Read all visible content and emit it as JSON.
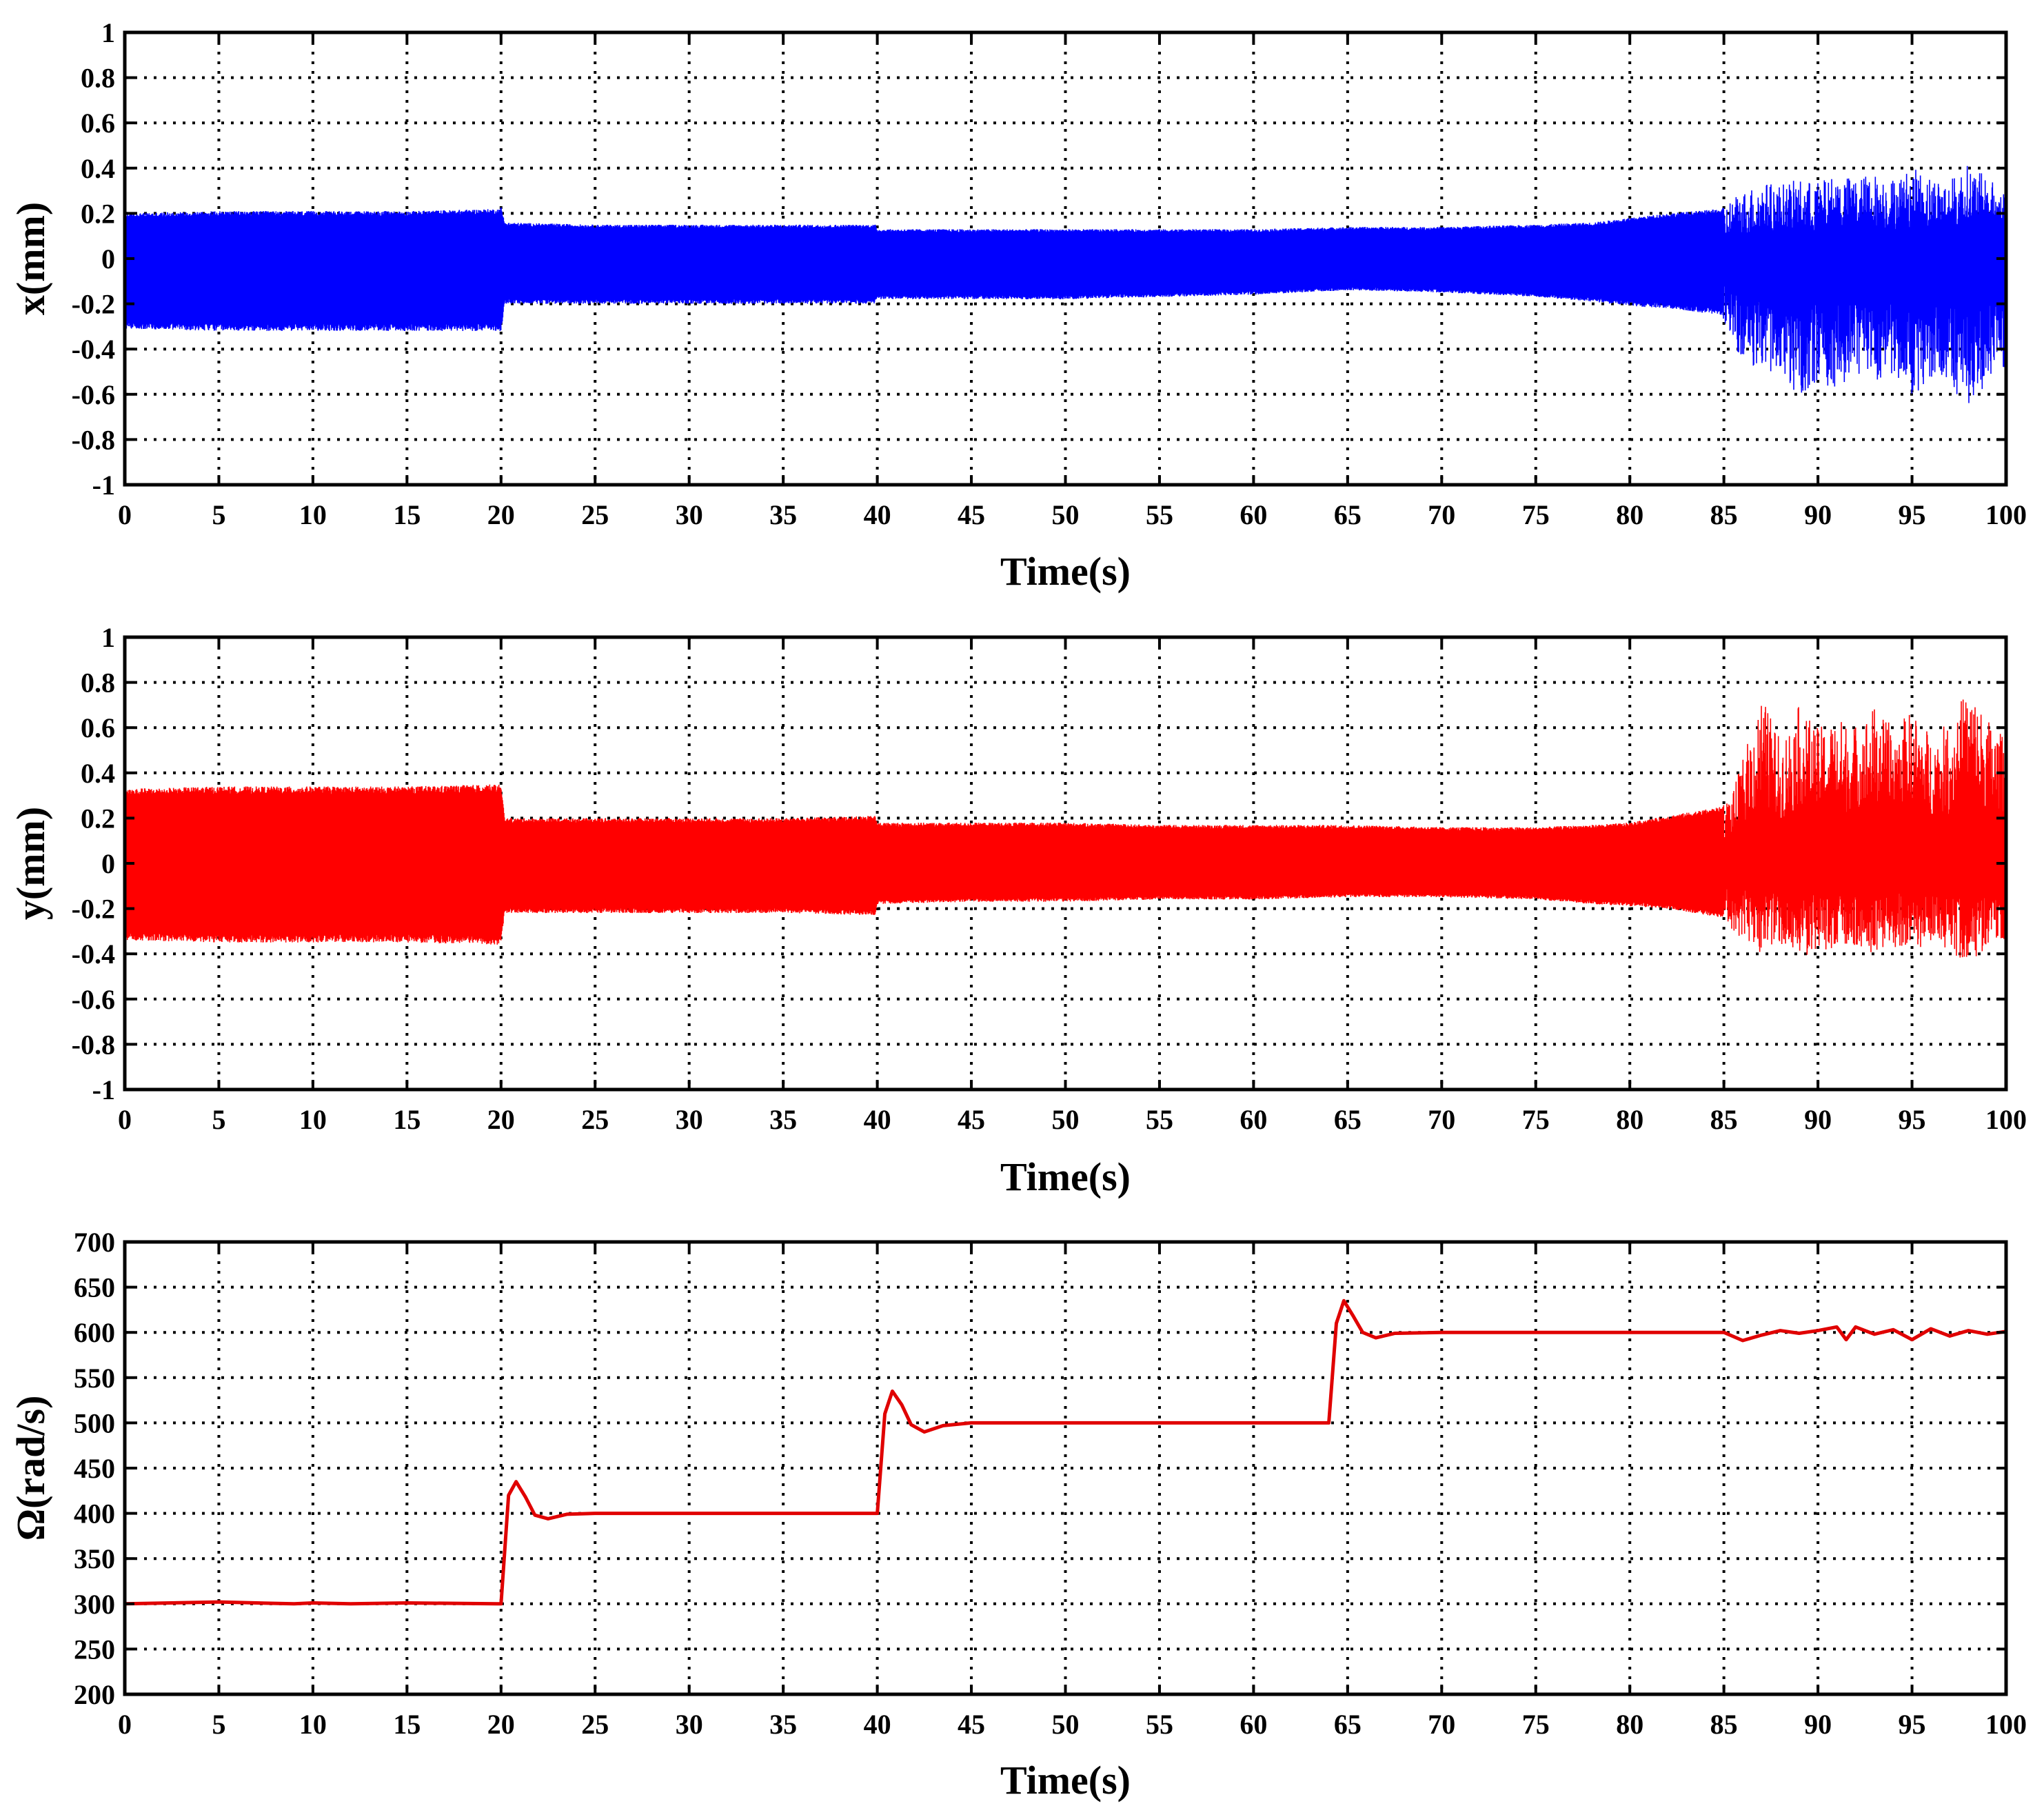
{
  "colors": {
    "x_series": "#0000ff",
    "y_series": "#ff0000",
    "omega_series": "#e00000"
  },
  "chart_data": [
    {
      "type": "line",
      "title": "",
      "xlabel": "Time(s)",
      "ylabel": "x(mm)",
      "xlim": [
        0,
        100
      ],
      "ylim": [
        -1,
        1
      ],
      "xticks": [
        0,
        5,
        10,
        15,
        20,
        25,
        30,
        35,
        40,
        45,
        50,
        55,
        60,
        65,
        70,
        75,
        80,
        85,
        90,
        95,
        100
      ],
      "yticks": [
        -1,
        -0.8,
        -0.6,
        -0.4,
        -0.2,
        0,
        0.2,
        0.4,
        0.6,
        0.8,
        1
      ],
      "ytick_labels": [
        "-1",
        "-0.8",
        "-0.6",
        "-0.4",
        "-0.2",
        "0",
        "0.2",
        "0.4",
        "0.6",
        "0.8",
        "1"
      ],
      "grid": true,
      "series": [
        {
          "color": "#0000ff",
          "style": "dense oscillation envelope",
          "x": [
            0,
            5,
            10,
            15,
            19.9,
            20,
            20.2,
            25,
            30,
            35,
            39.9,
            40,
            45,
            50,
            55,
            60,
            65,
            70,
            75,
            78,
            80,
            82,
            84.9,
            85.5,
            87,
            88,
            89,
            90,
            91,
            92,
            93,
            94,
            95,
            96,
            97,
            98,
            99,
            100
          ],
          "upper": [
            0.2,
            0.21,
            0.21,
            0.21,
            0.22,
            0.23,
            0.16,
            0.15,
            0.15,
            0.15,
            0.15,
            0.13,
            0.13,
            0.13,
            0.13,
            0.13,
            0.14,
            0.14,
            0.15,
            0.16,
            0.18,
            0.2,
            0.22,
            0.28,
            0.34,
            0.33,
            0.35,
            0.34,
            0.37,
            0.36,
            0.38,
            0.36,
            0.4,
            0.37,
            0.35,
            0.42,
            0.36,
            0.3
          ],
          "lower": [
            -0.31,
            -0.32,
            -0.32,
            -0.32,
            -0.32,
            -0.32,
            -0.2,
            -0.2,
            -0.2,
            -0.2,
            -0.2,
            -0.18,
            -0.18,
            -0.18,
            -0.17,
            -0.16,
            -0.14,
            -0.15,
            -0.17,
            -0.19,
            -0.21,
            -0.22,
            -0.25,
            -0.4,
            -0.55,
            -0.5,
            -0.62,
            -0.55,
            -0.6,
            -0.5,
            -0.58,
            -0.52,
            -0.62,
            -0.55,
            -0.6,
            -0.66,
            -0.55,
            -0.5
          ]
        }
      ]
    },
    {
      "type": "line",
      "title": "",
      "xlabel": "Time(s)",
      "ylabel": "y(mm)",
      "xlim": [
        0,
        100
      ],
      "ylim": [
        -1,
        1
      ],
      "xticks": [
        0,
        5,
        10,
        15,
        20,
        25,
        30,
        35,
        40,
        45,
        50,
        55,
        60,
        65,
        70,
        75,
        80,
        85,
        90,
        95,
        100
      ],
      "yticks": [
        -1,
        -0.8,
        -0.6,
        -0.4,
        -0.2,
        0,
        0.2,
        0.4,
        0.6,
        0.8,
        1
      ],
      "ytick_labels": [
        "-1",
        "-0.8",
        "-0.6",
        "-0.4",
        "-0.2",
        "0",
        "0.2",
        "0.4",
        "0.6",
        "0.8",
        "1"
      ],
      "grid": true,
      "series": [
        {
          "color": "#ff0000",
          "style": "dense oscillation envelope",
          "x": [
            0,
            5,
            10,
            15,
            19.9,
            20,
            20.2,
            25,
            30,
            35,
            39.9,
            40,
            45,
            50,
            55,
            60,
            65,
            70,
            75,
            78,
            80,
            82,
            84.9,
            85.5,
            87,
            88,
            89,
            90,
            91,
            92,
            93,
            94,
            95,
            96,
            97,
            98,
            99,
            100
          ],
          "upper": [
            0.33,
            0.34,
            0.34,
            0.34,
            0.35,
            0.34,
            0.2,
            0.2,
            0.2,
            0.2,
            0.21,
            0.18,
            0.18,
            0.18,
            0.17,
            0.17,
            0.17,
            0.16,
            0.16,
            0.17,
            0.18,
            0.21,
            0.25,
            0.32,
            0.75,
            0.55,
            0.7,
            0.6,
            0.65,
            0.62,
            0.7,
            0.6,
            0.68,
            0.58,
            0.62,
            0.8,
            0.65,
            0.55
          ],
          "lower": [
            -0.34,
            -0.35,
            -0.35,
            -0.35,
            -0.36,
            -0.34,
            -0.22,
            -0.22,
            -0.22,
            -0.22,
            -0.23,
            -0.18,
            -0.17,
            -0.17,
            -0.16,
            -0.16,
            -0.15,
            -0.15,
            -0.16,
            -0.18,
            -0.19,
            -0.2,
            -0.24,
            -0.3,
            -0.4,
            -0.36,
            -0.43,
            -0.38,
            -0.4,
            -0.36,
            -0.4,
            -0.37,
            -0.4,
            -0.35,
            -0.4,
            -0.44,
            -0.38,
            -0.35
          ]
        }
      ]
    },
    {
      "type": "line",
      "title": "",
      "xlabel": "Time(s)",
      "ylabel": "Ω(rad/s)",
      "xlim": [
        0,
        100
      ],
      "ylim": [
        200,
        700
      ],
      "xticks": [
        0,
        5,
        10,
        15,
        20,
        25,
        30,
        35,
        40,
        45,
        50,
        55,
        60,
        65,
        70,
        75,
        80,
        85,
        90,
        95,
        100
      ],
      "yticks": [
        200,
        250,
        300,
        350,
        400,
        450,
        500,
        550,
        600,
        650,
        700
      ],
      "ytick_labels": [
        "200",
        "250",
        "300",
        "350",
        "400",
        "450",
        "500",
        "550",
        "600",
        "650",
        "700"
      ],
      "grid": true,
      "series": [
        {
          "color": "#e00000",
          "style": "line",
          "x": [
            0,
            5,
            9,
            10,
            12,
            15,
            19.8,
            20.0,
            20.4,
            20.8,
            21.3,
            21.8,
            22.5,
            23.5,
            25,
            30,
            35,
            39.8,
            40.0,
            40.4,
            40.8,
            41.3,
            41.8,
            42.5,
            43.5,
            45,
            50,
            55,
            60,
            63.8,
            64.0,
            64.4,
            64.8,
            65.3,
            65.8,
            66.5,
            67.5,
            70,
            75,
            80,
            85,
            86,
            87,
            88,
            89,
            90,
            91,
            91.5,
            92,
            93,
            94,
            95,
            96,
            97,
            98,
            99,
            100
          ],
          "values": [
            300,
            302,
            300,
            301,
            300,
            301,
            300,
            300,
            420,
            435,
            418,
            398,
            394,
            399,
            400,
            400,
            400,
            400,
            400,
            510,
            535,
            520,
            498,
            490,
            497,
            500,
            500,
            500,
            500,
            500,
            500,
            610,
            635,
            618,
            600,
            594,
            599,
            600,
            600,
            600,
            600,
            591,
            597,
            602,
            599,
            602,
            606,
            592,
            606,
            598,
            603,
            592,
            604,
            596,
            602,
            598,
            601
          ]
        }
      ]
    }
  ]
}
